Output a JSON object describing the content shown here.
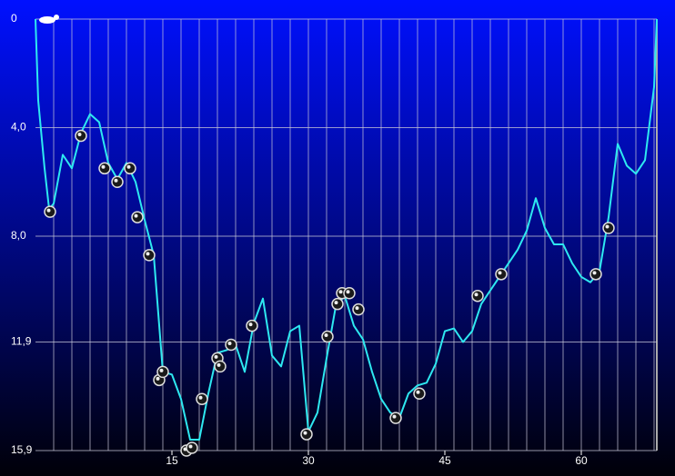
{
  "chart_data": {
    "type": "line",
    "y_inverted": true,
    "xlim": [
      0,
      68.3
    ],
    "ylim": [
      0,
      15.9
    ],
    "xticks": [
      15,
      30,
      45,
      60
    ],
    "xgrid": [
      2,
      4,
      6,
      8,
      10,
      12,
      14,
      16,
      18,
      20,
      22,
      24,
      26,
      28,
      30,
      32,
      34,
      36,
      38,
      40,
      42,
      44,
      46,
      48,
      50,
      52,
      54,
      56,
      58,
      60,
      62,
      64,
      66,
      68
    ],
    "yticks": [
      0,
      {
        "value": 4.0,
        "label": "4,0"
      },
      {
        "value": 8.0,
        "label": "8,0"
      },
      {
        "value": 11.9,
        "label": "11,9"
      },
      {
        "value": 15.9,
        "label": "15,9"
      }
    ],
    "grid": true,
    "series": [
      {
        "color": "#2ee8f0",
        "x": [
          0,
          0.3,
          1,
          1.5,
          2,
          3,
          4,
          5,
          6,
          7,
          8,
          9,
          10,
          11,
          12,
          13,
          14,
          15,
          16,
          17,
          18,
          19,
          20,
          21,
          22,
          23,
          24,
          25,
          26,
          27,
          28,
          29,
          30,
          31,
          32,
          33,
          34,
          35,
          36,
          37,
          38,
          39,
          40,
          41,
          42,
          43,
          44,
          45,
          46,
          47,
          48,
          49,
          50,
          51,
          52,
          53,
          54,
          55,
          56,
          57,
          58,
          59,
          60,
          61,
          62,
          63,
          64,
          65,
          66,
          67,
          68,
          68.3
        ],
        "values": [
          0,
          3.0,
          5.5,
          7.0,
          6.8,
          5.0,
          5.5,
          4.2,
          3.5,
          3.8,
          5.3,
          5.9,
          5.3,
          6.0,
          7.4,
          8.7,
          13.0,
          13.1,
          14.0,
          15.5,
          15.5,
          13.8,
          12.3,
          12.2,
          12.0,
          13.0,
          11.2,
          10.3,
          12.4,
          12.8,
          11.5,
          11.3,
          15.2,
          14.5,
          12.5,
          10.6,
          10.2,
          11.3,
          11.8,
          13.0,
          14.0,
          14.5,
          14.7,
          13.8,
          13.5,
          13.4,
          12.7,
          11.5,
          11.4,
          11.9,
          11.5,
          10.5,
          10.0,
          9.5,
          9.0,
          8.5,
          7.8,
          6.6,
          7.7,
          8.3,
          8.3,
          9.0,
          9.5,
          9.7,
          9.3,
          7.3,
          4.6,
          5.4,
          5.7,
          5.2,
          2.5,
          0
        ]
      },
      {
        "type": "scatter",
        "color": "#1a1a1a",
        "x": [
          1.6,
          5,
          7.6,
          9,
          10.4,
          11.2,
          12.5,
          13.6,
          14,
          16.6,
          17.2,
          18.3,
          20,
          20.3,
          21.5,
          23.8,
          29.8,
          32.1,
          33.2,
          33.7,
          34.5,
          35.5,
          39.6,
          42.2,
          48.6,
          51.2,
          61.6,
          63
        ],
        "values": [
          7.1,
          4.3,
          5.5,
          6.0,
          5.5,
          7.3,
          8.7,
          13.3,
          13.0,
          15.9,
          15.8,
          14.0,
          12.5,
          12.8,
          12.0,
          11.3,
          15.3,
          11.7,
          10.5,
          10.1,
          10.1,
          10.7,
          14.7,
          13.8,
          10.2,
          9.4,
          9.4,
          7.7
        ]
      }
    ]
  }
}
